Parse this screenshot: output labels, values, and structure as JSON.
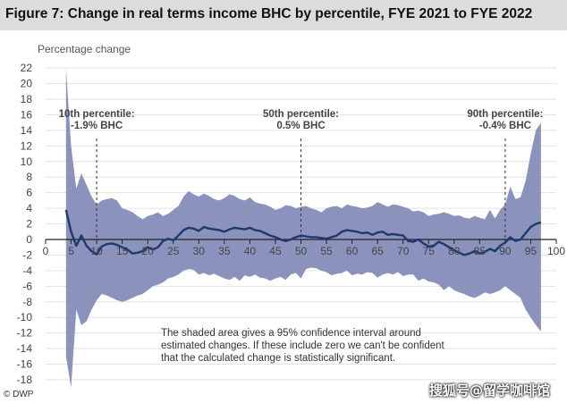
{
  "header": {
    "title": "Figure 7: Change in real terms income BHC by percentile, FYE 2021 to FYE 2022"
  },
  "footer": {
    "source": "© DWP",
    "watermark": "搜狐号@留学咖啡馆"
  },
  "colors": {
    "band": "#8b93bd",
    "line": "#1d3a6d",
    "grid": "#e2e2e2",
    "axis": "#222222",
    "title_bar": "#dcdcdc"
  },
  "chart_data": {
    "type": "area",
    "title": "Figure 7: Change in real terms income BHC by percentile, FYE 2021 to FYE 2022",
    "ylabel": "Percentage change",
    "xlabel": "",
    "xlim": [
      0,
      100
    ],
    "ylim": [
      -19,
      22.5
    ],
    "x_ticks": [
      0,
      5,
      10,
      15,
      20,
      25,
      30,
      35,
      40,
      45,
      50,
      55,
      60,
      65,
      70,
      75,
      80,
      85,
      90,
      95,
      100
    ],
    "y_ticks": [
      -18,
      -16,
      -14,
      -12,
      -10,
      -8,
      -6,
      -4,
      -2,
      0,
      2,
      4,
      6,
      8,
      10,
      12,
      14,
      16,
      18,
      20,
      22
    ],
    "grid": true,
    "series": [
      {
        "name": "",
        "kind": "line",
        "x": [
          4,
          5,
          6,
          7,
          8,
          9,
          10,
          11,
          12,
          13,
          14,
          15,
          16,
          17,
          18,
          19,
          20,
          21,
          22,
          23,
          24,
          25,
          26,
          27,
          28,
          29,
          30,
          31,
          32,
          33,
          34,
          35,
          36,
          37,
          38,
          39,
          40,
          41,
          42,
          43,
          44,
          45,
          46,
          47,
          48,
          49,
          50,
          51,
          52,
          53,
          54,
          55,
          56,
          57,
          58,
          59,
          60,
          61,
          62,
          63,
          64,
          65,
          66,
          67,
          68,
          69,
          70,
          71,
          72,
          73,
          74,
          75,
          76,
          77,
          78,
          79,
          80,
          81,
          82,
          83,
          84,
          85,
          86,
          87,
          88,
          89,
          90,
          91,
          92,
          93,
          94,
          95,
          96,
          97
        ],
        "y": [
          3.8,
          1.0,
          -0.8,
          0.5,
          -0.8,
          -1.5,
          -1.9,
          -0.9,
          -0.6,
          -0.5,
          -0.7,
          -1.0,
          -1.3,
          -1.8,
          -1.7,
          -1.5,
          -1.0,
          -1.3,
          -1.0,
          -0.2,
          0.1,
          -0.1,
          0.5,
          1.2,
          1.5,
          1.4,
          1.1,
          1.6,
          1.4,
          1.3,
          1.2,
          1.0,
          1.3,
          1.5,
          1.4,
          1.3,
          1.5,
          1.2,
          1.1,
          0.8,
          0.5,
          0.3,
          0.0,
          -0.2,
          0.0,
          0.3,
          0.5,
          0.4,
          0.3,
          0.3,
          0.2,
          0.1,
          0.3,
          0.5,
          1.0,
          1.2,
          1.1,
          1.0,
          0.8,
          0.9,
          0.6,
          0.9,
          1.0,
          0.6,
          0.7,
          0.6,
          0.5,
          -0.2,
          -0.3,
          0.0,
          -0.5,
          -0.9,
          -0.8,
          -0.3,
          -0.6,
          -1.0,
          -1.4,
          -1.7,
          -2.0,
          -1.8,
          -1.5,
          -1.8,
          -1.6,
          -1.2,
          -1.5,
          -0.8,
          -0.4,
          0.3,
          -0.2,
          0.0,
          0.8,
          1.6,
          2.0,
          2.2
        ]
      },
      {
        "name": "",
        "kind": "band_upper",
        "x": [
          4,
          5,
          6,
          7,
          8,
          9,
          10,
          11,
          12,
          13,
          14,
          15,
          16,
          17,
          18,
          19,
          20,
          21,
          22,
          23,
          24,
          25,
          26,
          27,
          28,
          29,
          30,
          31,
          32,
          33,
          34,
          35,
          36,
          37,
          38,
          39,
          40,
          41,
          42,
          43,
          44,
          45,
          46,
          47,
          48,
          49,
          50,
          51,
          52,
          53,
          54,
          55,
          56,
          57,
          58,
          59,
          60,
          61,
          62,
          63,
          64,
          65,
          66,
          67,
          68,
          69,
          70,
          71,
          72,
          73,
          74,
          75,
          76,
          77,
          78,
          79,
          80,
          81,
          82,
          83,
          84,
          85,
          86,
          87,
          88,
          89,
          90,
          91,
          92,
          93,
          94,
          95,
          96,
          97
        ],
        "y": [
          22.0,
          12.0,
          6.5,
          8.5,
          7.0,
          5.5,
          4.5,
          5.0,
          5.2,
          5.3,
          5.0,
          4.0,
          3.8,
          3.5,
          3.0,
          2.6,
          3.0,
          3.2,
          3.5,
          3.0,
          3.3,
          3.8,
          4.3,
          5.5,
          6.2,
          5.8,
          5.5,
          5.9,
          5.6,
          5.2,
          5.0,
          5.3,
          5.8,
          5.6,
          5.2,
          5.0,
          5.4,
          4.8,
          4.6,
          4.5,
          4.2,
          3.8,
          4.0,
          4.4,
          4.3,
          4.0,
          4.2,
          4.3,
          4.0,
          3.8,
          3.5,
          4.0,
          4.2,
          4.3,
          4.0,
          4.5,
          4.3,
          4.2,
          4.0,
          4.1,
          4.3,
          4.8,
          4.5,
          4.2,
          4.5,
          4.4,
          4.2,
          4.0,
          3.6,
          3.7,
          3.5,
          3.0,
          3.2,
          3.3,
          3.5,
          3.3,
          3.0,
          3.1,
          2.8,
          2.7,
          3.0,
          2.8,
          2.6,
          3.8,
          2.7,
          3.8,
          4.5,
          6.8,
          5.2,
          5.4,
          7.5,
          11.0,
          14.0,
          15.0
        ]
      },
      {
        "name": "",
        "kind": "band_lower",
        "x": [
          4,
          5,
          6,
          7,
          8,
          9,
          10,
          11,
          12,
          13,
          14,
          15,
          16,
          17,
          18,
          19,
          20,
          21,
          22,
          23,
          24,
          25,
          26,
          27,
          28,
          29,
          30,
          31,
          32,
          33,
          34,
          35,
          36,
          37,
          38,
          39,
          40,
          41,
          42,
          43,
          44,
          45,
          46,
          47,
          48,
          49,
          50,
          51,
          52,
          53,
          54,
          55,
          56,
          57,
          58,
          59,
          60,
          61,
          62,
          63,
          64,
          65,
          66,
          67,
          68,
          69,
          70,
          71,
          72,
          73,
          74,
          75,
          76,
          77,
          78,
          79,
          80,
          81,
          82,
          83,
          84,
          85,
          86,
          87,
          88,
          89,
          90,
          91,
          92,
          93,
          94,
          95,
          96,
          97
        ],
        "y": [
          -15.0,
          -19.0,
          -9.0,
          -11.0,
          -10.5,
          -9.0,
          -7.8,
          -7.0,
          -7.2,
          -7.5,
          -7.8,
          -8.0,
          -7.8,
          -7.5,
          -7.2,
          -7.0,
          -6.5,
          -6.0,
          -5.8,
          -5.5,
          -5.0,
          -4.8,
          -4.5,
          -4.0,
          -3.8,
          -3.9,
          -4.5,
          -4.3,
          -4.6,
          -4.4,
          -4.7,
          -5.0,
          -5.2,
          -4.8,
          -5.3,
          -4.6,
          -4.8,
          -4.5,
          -4.9,
          -5.0,
          -5.3,
          -5.0,
          -4.8,
          -5.2,
          -4.5,
          -4.3,
          -5.0,
          -3.8,
          -3.6,
          -3.7,
          -4.0,
          -4.2,
          -4.6,
          -4.4,
          -4.3,
          -4.0,
          -4.6,
          -4.4,
          -4.5,
          -4.2,
          -4.3,
          -4.9,
          -4.5,
          -4.3,
          -4.5,
          -4.2,
          -4.7,
          -4.5,
          -4.5,
          -5.3,
          -5.0,
          -5.4,
          -5.5,
          -5.8,
          -6.5,
          -6.0,
          -6.5,
          -6.8,
          -7.0,
          -7.3,
          -7.5,
          -7.2,
          -6.8,
          -7.0,
          -6.8,
          -6.5,
          -6.0,
          -6.5,
          -7.0,
          -7.5,
          -9.0,
          -10.0,
          -11.0,
          -11.8
        ]
      }
    ],
    "annotations": [
      {
        "x": 10,
        "lines": [
          "10th percentile:",
          "-1.9% BHC"
        ]
      },
      {
        "x": 50,
        "lines": [
          "50th percentile:",
          "0.5% BHC"
        ]
      },
      {
        "x": 90,
        "lines": [
          "90th percentile:",
          "-0.4% BHC"
        ]
      }
    ],
    "note": [
      "The shaded area gives a 95% confidence interval around",
      "estimated changes. If these include zero we can't be confident",
      "that the calculated change is statistically significant."
    ]
  }
}
